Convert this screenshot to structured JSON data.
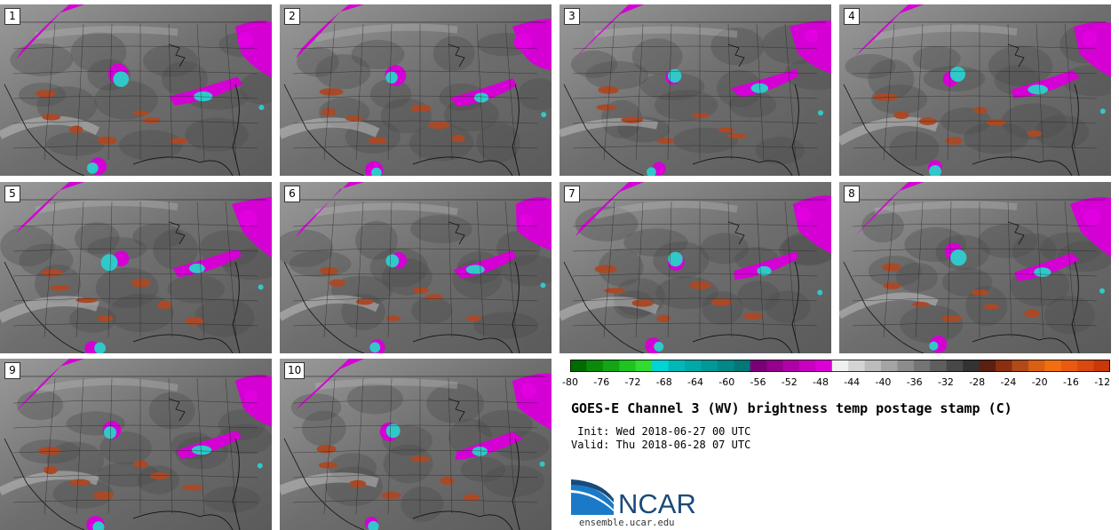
{
  "panels": [
    {
      "label": "1"
    },
    {
      "label": "2"
    },
    {
      "label": "3"
    },
    {
      "label": "4"
    },
    {
      "label": "5"
    },
    {
      "label": "6"
    },
    {
      "label": "7"
    },
    {
      "label": "8"
    },
    {
      "label": "9"
    },
    {
      "label": "10"
    }
  ],
  "colorbar": {
    "ticks": [
      "-80",
      "-76",
      "-72",
      "-68",
      "-64",
      "-60",
      "-56",
      "-52",
      "-48",
      "-44",
      "-40",
      "-36",
      "-32",
      "-28",
      "-24",
      "-20",
      "-16",
      "-12"
    ],
    "colors": [
      "#006b00",
      "#0a8a0a",
      "#14a514",
      "#20c420",
      "#30dc30",
      "#00d4d4",
      "#00b8b8",
      "#00a8a8",
      "#009898",
      "#008888",
      "#007878",
      "#7a0078",
      "#95008f",
      "#b000a8",
      "#c800c0",
      "#dc00d4",
      "#f0f0f0",
      "#d4d4d4",
      "#bcbcbc",
      "#a4a4a4",
      "#8c8c8c",
      "#747474",
      "#5e5e5e",
      "#484848",
      "#333333",
      "#5a2010",
      "#8a3010",
      "#b04a18",
      "#d86010",
      "#f07010",
      "#e85a10",
      "#d84a10",
      "#c83808"
    ],
    "range": [
      -80,
      -11
    ]
  },
  "title": "GOES-E Channel 3 (WV) brightness temp postage stamp (C)",
  "init_line": " Init: Wed 2018-06-27 00 UTC",
  "valid_line": "Valid: Thu 2018-06-28 07 UTC",
  "logo_text": "NCAR",
  "site": "ensemble.ucar.edu",
  "colors": {
    "moist_magenta": "#dc00dc",
    "cyan": "#30c8c8",
    "rust": "#a84a28",
    "map_gray": "#7a7a7a",
    "ncar_blue": "#1a4a7a"
  }
}
